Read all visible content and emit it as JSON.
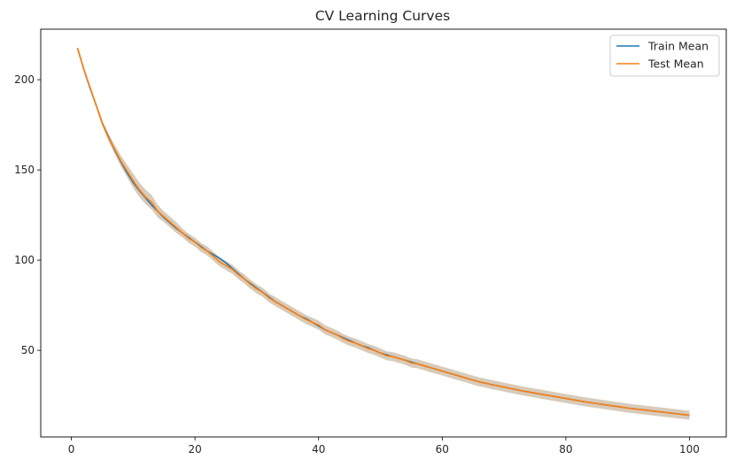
{
  "chart_data": {
    "type": "line",
    "title": "CV Learning Curves",
    "xlabel": "",
    "ylabel": "",
    "xlim": [
      -4.95,
      105.95
    ],
    "ylim": [
      2.0,
      228.0
    ],
    "xticks": [
      0,
      20,
      40,
      60,
      80,
      100
    ],
    "yticks": [
      50,
      100,
      150,
      200
    ],
    "grid": false,
    "legend_position": "top-right",
    "colors": {
      "train": "#1f77b4",
      "test": "#ff7f0e",
      "band": "#d4c5b3"
    },
    "x_start": 1,
    "series": [
      {
        "name": "Train Mean",
        "values": [
          217.5,
          206,
          195.5,
          186,
          176,
          168.5,
          161,
          154.5,
          148.5,
          143,
          138.5,
          134.5,
          130.5,
          127,
          123.5,
          120.5,
          117.5,
          115,
          112.5,
          110,
          107.5,
          105,
          103,
          101,
          98.5,
          95.5,
          92.5,
          89.5,
          87,
          84.5,
          82,
          79.5,
          77,
          75,
          73,
          71,
          69,
          67.5,
          65.5,
          63.5,
          61.5,
          60,
          58.5,
          57,
          55.5,
          54,
          52.5,
          51.5,
          50,
          48.5,
          47.5,
          46.5,
          45.5,
          44.5,
          43.5,
          42.5,
          41.5,
          40.5,
          39.5,
          38.5,
          37.5,
          36.5,
          35.5,
          34.5,
          33.5,
          32.5,
          31.8,
          31,
          30.3,
          29.6,
          28.9,
          28.2,
          27.5,
          26.9,
          26.3,
          25.7,
          25.1,
          24.5,
          23.9,
          23.3,
          22.7,
          22.1,
          21.5,
          21,
          20.5,
          20,
          19.5,
          19,
          18.5,
          18,
          17.6,
          17.2,
          16.8,
          16.4,
          16,
          15.6,
          15.2,
          14.8,
          14.4,
          14
        ]
      },
      {
        "name": "Test Mean",
        "values": [
          217.5,
          206,
          196,
          186,
          176,
          168,
          161.5,
          155,
          149.5,
          144,
          139,
          135,
          132,
          127,
          124,
          121,
          118,
          115,
          112,
          110,
          107,
          105,
          102,
          99,
          97,
          95,
          92,
          89.5,
          86.5,
          84,
          82,
          79,
          77,
          75,
          73,
          71,
          69,
          67,
          65.5,
          64,
          61.5,
          60,
          58.5,
          56.5,
          55,
          54,
          52.5,
          51,
          50,
          48.5,
          47,
          46.5,
          45.5,
          44.5,
          43,
          42.5,
          41.5,
          40.5,
          39.5,
          38.5,
          37.5,
          36.5,
          35.5,
          34.5,
          33.5,
          32.5,
          31.8,
          31,
          30.3,
          29.6,
          28.9,
          28.2,
          27.5,
          26.9,
          26.3,
          25.7,
          25.1,
          24.5,
          23.9,
          23.3,
          22.7,
          22.1,
          21.5,
          21,
          20.5,
          20,
          19.5,
          19,
          18.5,
          18,
          17.6,
          17.2,
          16.8,
          16.4,
          16,
          15.6,
          15.2,
          14.8,
          14.4,
          14
        ]
      }
    ],
    "band_halfwidth": [
      0.5,
      1,
      1,
      1.2,
      1.5,
      2,
      2.5,
      3,
      3.5,
      4,
      4,
      4,
      4,
      3.5,
      3,
      3,
      3,
      2.5,
      2.5,
      2.5,
      2.5,
      2.5,
      2.5,
      2.5,
      2.5,
      2.5,
      2.5,
      2.5,
      2.5,
      2.5,
      2.5,
      2.5,
      2.5,
      2.5,
      2.5,
      2.5,
      2.5,
      2.5,
      2.5,
      2.5,
      2.5,
      2.5,
      2.5,
      2.5,
      2.5,
      2.5,
      2.5,
      2.5,
      2.5,
      2.5,
      2.5,
      2.5,
      2.5,
      2.5,
      2.5,
      2.5,
      2.5,
      2.5,
      2.5,
      2.5,
      2.5,
      2.5,
      2.5,
      2.5,
      2.5,
      2.5,
      2.5,
      2.5,
      2.5,
      2.5,
      2.5,
      2.5,
      2.5,
      2.5,
      2.5,
      2.5,
      2.5,
      2.5,
      2.5,
      2.5,
      2.5,
      2.5,
      2.5,
      2.5,
      2.5,
      2.5,
      2.5,
      2.5,
      2.5,
      2.5,
      2.5,
      2.5,
      2.5,
      2.5,
      2.5,
      2.5,
      2.5,
      2.5,
      2.5,
      2.5
    ]
  }
}
